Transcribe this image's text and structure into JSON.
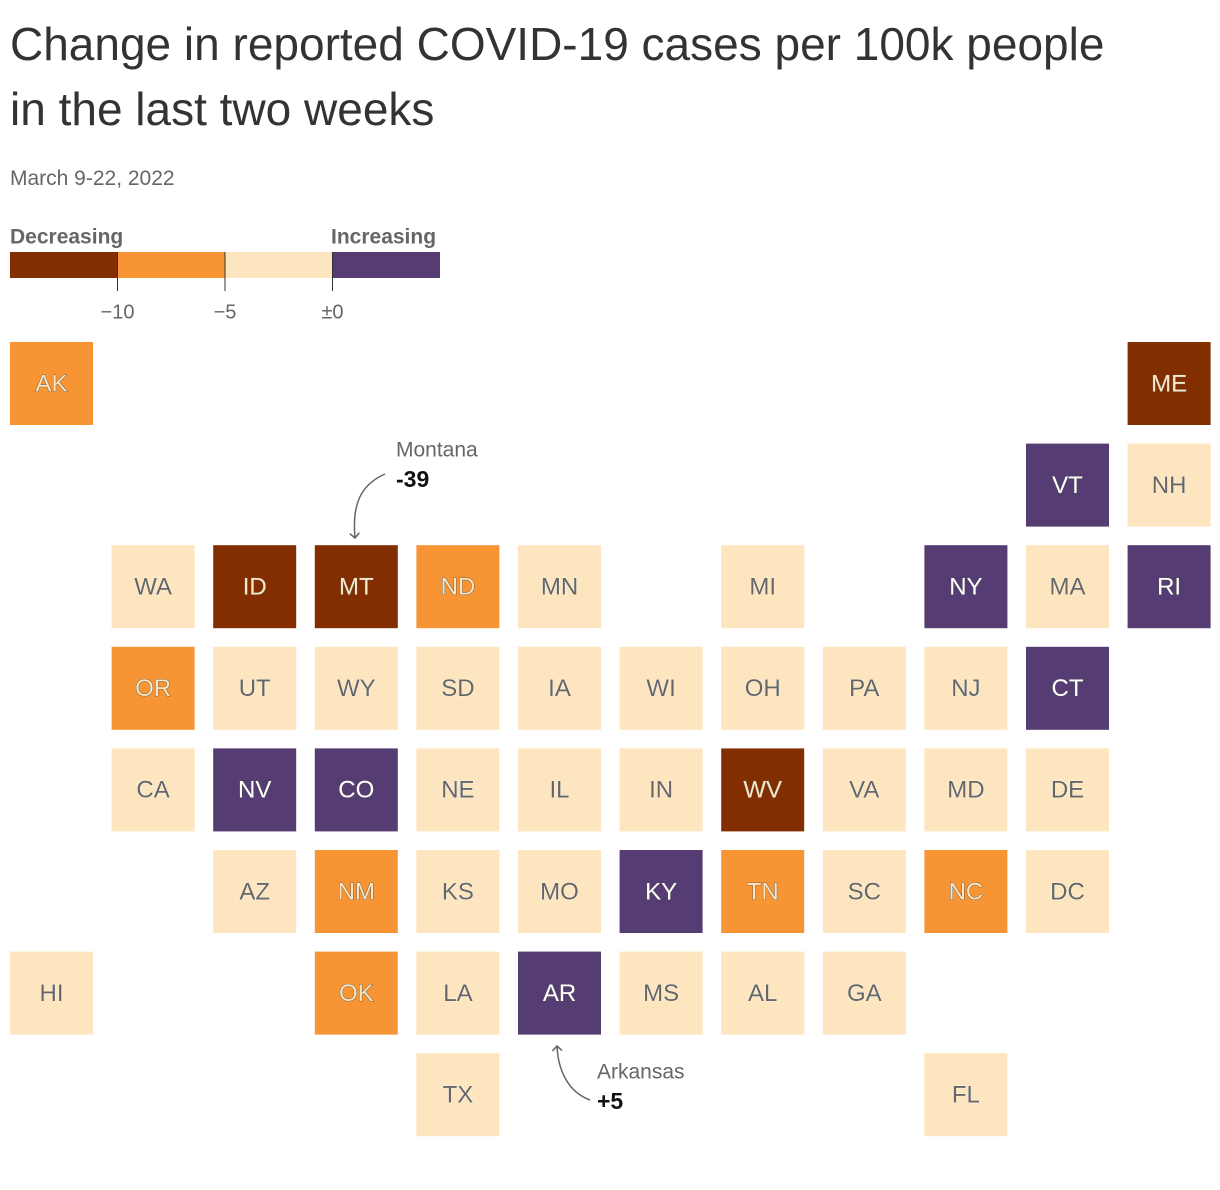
{
  "title": "Change in reported COVID-19 cases per 100k people in the last two weeks",
  "subtitle": "March 9-22, 2022",
  "legend": {
    "left_label": "Decreasing",
    "right_label": "Increasing",
    "xlim": [
      -15,
      5
    ],
    "ticks": [
      {
        "value": -10,
        "label": "−10"
      },
      {
        "value": -5,
        "label": "−5"
      },
      {
        "value": 0,
        "label": "±0"
      }
    ],
    "colors": [
      "#822e00",
      "#f79433",
      "#fde6bf",
      "#553c72"
    ]
  },
  "states": [
    {
      "name": "AK",
      "color": "#f79433"
    },
    {
      "name": "ME",
      "color": "#822e00"
    },
    {
      "name": "VT",
      "color": "#553c72"
    },
    {
      "name": "NH",
      "color": "#fde6bf"
    },
    {
      "name": "WA",
      "color": "#fde6bf"
    },
    {
      "name": "ID",
      "color": "#822e00"
    },
    {
      "name": "MT",
      "color": "#822e00"
    },
    {
      "name": "ND",
      "color": "#f79433"
    },
    {
      "name": "MN",
      "color": "#fde6bf"
    },
    {
      "name": "MI",
      "color": "#fde6bf"
    },
    {
      "name": "NY",
      "color": "#553c72"
    },
    {
      "name": "MA",
      "color": "#fde6bf"
    },
    {
      "name": "RI",
      "color": "#553c72"
    },
    {
      "name": "OR",
      "color": "#f79433"
    },
    {
      "name": "UT",
      "color": "#fde6bf"
    },
    {
      "name": "WY",
      "color": "#fde6bf"
    },
    {
      "name": "SD",
      "color": "#fde6bf"
    },
    {
      "name": "IA",
      "color": "#fde6bf"
    },
    {
      "name": "WI",
      "color": "#fde6bf"
    },
    {
      "name": "OH",
      "color": "#fde6bf"
    },
    {
      "name": "PA",
      "color": "#fde6bf"
    },
    {
      "name": "NJ",
      "color": "#fde6bf"
    },
    {
      "name": "CT",
      "color": "#553c72"
    },
    {
      "name": "CA",
      "color": "#fde6bf"
    },
    {
      "name": "NV",
      "color": "#553c72"
    },
    {
      "name": "CO",
      "color": "#553c72"
    },
    {
      "name": "NE",
      "color": "#fde6bf"
    },
    {
      "name": "IL",
      "color": "#fde6bf"
    },
    {
      "name": "IN",
      "color": "#fde6bf"
    },
    {
      "name": "WV",
      "color": "#822e00"
    },
    {
      "name": "VA",
      "color": "#fde6bf"
    },
    {
      "name": "MD",
      "color": "#fde6bf"
    },
    {
      "name": "DE",
      "color": "#fde6bf"
    },
    {
      "name": "AZ",
      "color": "#fde6bf"
    },
    {
      "name": "NM",
      "color": "#f79433"
    },
    {
      "name": "KS",
      "color": "#fde6bf"
    },
    {
      "name": "MO",
      "color": "#fde6bf"
    },
    {
      "name": "KY",
      "color": "#553c72"
    },
    {
      "name": "TN",
      "color": "#f79433"
    },
    {
      "name": "SC",
      "color": "#fde6bf"
    },
    {
      "name": "NC",
      "color": "#f79433"
    },
    {
      "name": "DC",
      "color": "#fde6bf"
    },
    {
      "name": "HI",
      "color": "#fde6bf"
    },
    {
      "name": "OK",
      "color": "#f79433"
    },
    {
      "name": "LA",
      "color": "#fde6bf"
    },
    {
      "name": "AR",
      "color": "#553c72"
    },
    {
      "name": "MS",
      "color": "#fde6bf"
    },
    {
      "name": "AL",
      "color": "#fde6bf"
    },
    {
      "name": "GA",
      "color": "#fde6bf"
    },
    {
      "name": "TX",
      "color": "#fde6bf"
    },
    {
      "name": "FL",
      "color": "#fde6bf"
    }
  ],
  "annotations": [
    {
      "state": "Montana",
      "value": -39
    },
    {
      "state": "Arkansas",
      "value": 5,
      "value_label": "+5"
    }
  ]
}
